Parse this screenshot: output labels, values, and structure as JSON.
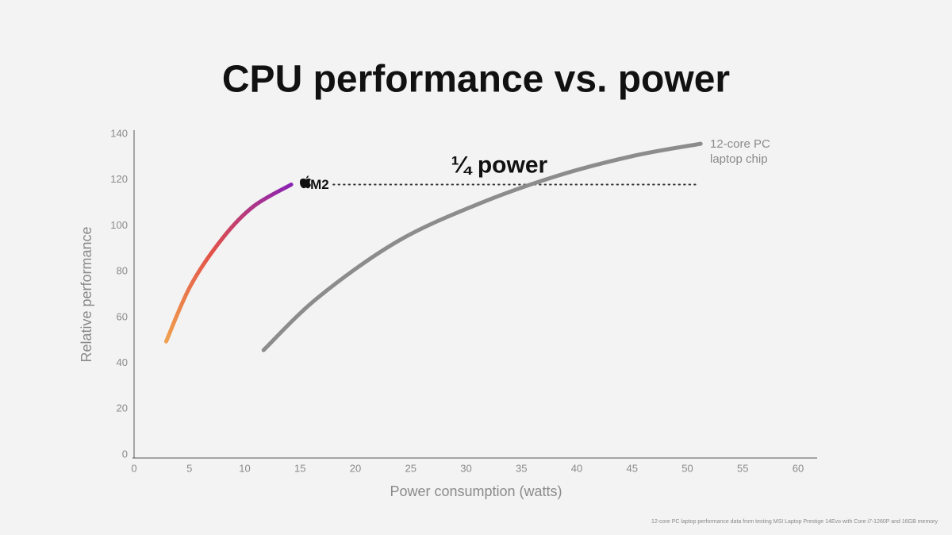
{
  "chart_data": {
    "type": "line",
    "title": "CPU performance vs. power",
    "x_label": "Power consumption (watts)",
    "y_label": "Relative performance",
    "xlim": [
      0,
      62
    ],
    "ylim": [
      0,
      140
    ],
    "xticks": [
      0,
      5,
      10,
      15,
      20,
      25,
      30,
      35,
      40,
      45,
      50,
      55,
      60
    ],
    "yticks": [
      0,
      20,
      40,
      60,
      80,
      100,
      120,
      140
    ],
    "grid": false,
    "series": [
      {
        "name": "M2",
        "gradient": [
          "#f0a04e",
          "#e2514a",
          "#8a22b4"
        ],
        "x": [
          2.9,
          5.1,
          8.0,
          10.8,
          14.2
        ],
        "values": [
          49.5,
          73.8,
          94.6,
          108.5,
          118
        ]
      },
      {
        "name": "12-core PC laptop chip",
        "color": "#8c8c8c",
        "x": [
          11.7,
          16.6,
          23.7,
          30.9,
          38.1,
          45.2,
          51.2
        ],
        "values": [
          45.7,
          68.6,
          92.9,
          109.1,
          121.6,
          130.6,
          135.8
        ]
      }
    ],
    "reference_line": {
      "y": 118,
      "x": [
        18,
        51
      ],
      "color": "#333333"
    },
    "annotation": {
      "text": "¼ power",
      "x": 33,
      "y": 126
    },
    "footnote": "12-core PC laptop performance data from testing MSI Laptop Prestige 14Evo with Core i7-1260P and 16GB memory"
  }
}
